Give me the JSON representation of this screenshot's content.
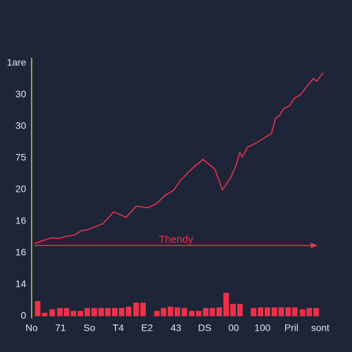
{
  "chart_data": {
    "type": "line",
    "annotation": "Thendy",
    "xlim": [
      0,
      10.1
    ],
    "ylim": [
      0,
      8.2
    ],
    "xticks": [
      {
        "value": 0,
        "label": "No"
      },
      {
        "value": 1,
        "label": "71"
      },
      {
        "value": 2,
        "label": "So"
      },
      {
        "value": 3,
        "label": "T4"
      },
      {
        "value": 4,
        "label": "E2"
      },
      {
        "value": 5,
        "label": "43"
      },
      {
        "value": 6,
        "label": "DS"
      },
      {
        "value": 7,
        "label": "00"
      },
      {
        "value": 8,
        "label": "100"
      },
      {
        "value": 9,
        "label": "Pril"
      },
      {
        "value": 10,
        "label": "sont"
      }
    ],
    "yticks": [
      0,
      {
        "value": 1,
        "label": "14"
      },
      {
        "value": 2,
        "label": "16"
      },
      {
        "value": 3,
        "label": "16"
      },
      {
        "value": 4,
        "label": "20"
      },
      {
        "value": 5,
        "label": "75"
      },
      {
        "value": 6,
        "label": "30"
      },
      {
        "value": 7,
        "label": "30"
      },
      {
        "value": 8,
        "label": "1are"
      }
    ],
    "series": [
      {
        "type": "line",
        "color": "#e8334a",
        "x": [
          0.1,
          0.38,
          0.69,
          0.93,
          1.17,
          1.48,
          1.72,
          1.96,
          2.2,
          2.48,
          2.84,
          3.27,
          3.63,
          4.03,
          4.34,
          4.63,
          4.92,
          5.16,
          5.54,
          5.94,
          6.35,
          6.61,
          6.9,
          7.09,
          7.21,
          7.3,
          7.49,
          7.78,
          8.31,
          8.45,
          8.59,
          8.74,
          8.93,
          9.12,
          9.31,
          9.57,
          9.76,
          9.88,
          10.1
        ],
        "values": [
          2.3,
          2.39,
          2.48,
          2.46,
          2.52,
          2.57,
          2.7,
          2.74,
          2.83,
          2.93,
          3.3,
          3.13,
          3.48,
          3.43,
          3.57,
          3.83,
          3.98,
          4.3,
          4.65,
          4.96,
          4.65,
          4.0,
          4.39,
          4.78,
          5.17,
          5.04,
          5.35,
          5.48,
          5.78,
          6.26,
          6.35,
          6.57,
          6.65,
          6.91,
          7.0,
          7.3,
          7.52,
          7.43,
          7.7
        ]
      },
      {
        "type": "bar",
        "color": "#f0304a",
        "x": [
          0.21,
          0.45,
          0.71,
          0.98,
          1.21,
          1.45,
          1.69,
          1.93,
          2.17,
          2.41,
          2.64,
          2.88,
          3.12,
          3.36,
          3.62,
          3.86,
          4.34,
          4.57,
          4.81,
          5.05,
          5.29,
          5.55,
          5.79,
          6.03,
          6.26,
          6.5,
          6.74,
          6.98,
          7.22,
          7.69,
          7.93,
          8.17,
          8.41,
          8.65,
          8.89,
          9.12,
          9.39,
          9.62,
          9.86
        ],
        "values": [
          0.48,
          0.11,
          0.22,
          0.26,
          0.26,
          0.17,
          0.17,
          0.26,
          0.26,
          0.26,
          0.26,
          0.26,
          0.26,
          0.3,
          0.43,
          0.43,
          0.17,
          0.26,
          0.3,
          0.28,
          0.26,
          0.17,
          0.17,
          0.26,
          0.26,
          0.28,
          0.74,
          0.39,
          0.39,
          0.26,
          0.28,
          0.28,
          0.28,
          0.28,
          0.28,
          0.28,
          0.22,
          0.26,
          0.26
        ]
      }
    ]
  }
}
